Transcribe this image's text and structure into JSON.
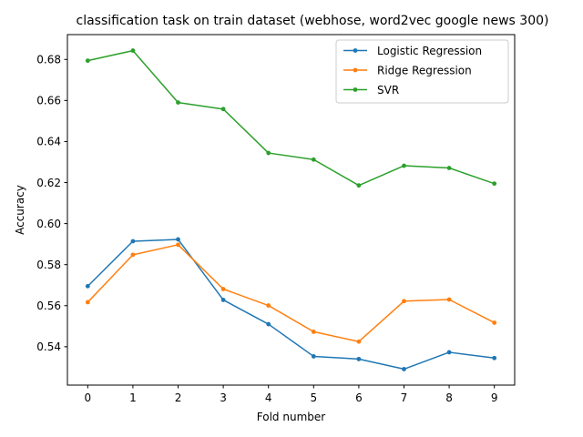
{
  "chart_data": {
    "type": "line",
    "title": "classification task on train dataset (webhose, word2vec google news 300)",
    "xlabel": "Fold number",
    "ylabel": "Accuracy",
    "x": [
      0,
      1,
      2,
      3,
      4,
      5,
      6,
      7,
      8,
      9
    ],
    "xticks": [
      "0",
      "1",
      "2",
      "3",
      "4",
      "5",
      "6",
      "7",
      "8",
      "9"
    ],
    "yticks": [
      "0.54",
      "0.56",
      "0.58",
      "0.60",
      "0.62",
      "0.64",
      "0.66",
      "0.68"
    ],
    "ytick_values": [
      0.54,
      0.56,
      0.58,
      0.6,
      0.62,
      0.64,
      0.66,
      0.68
    ],
    "xlim": [
      -0.45,
      9.45
    ],
    "ylim": [
      0.5213,
      0.6921
    ],
    "grid": false,
    "legend_position": "top-right",
    "series": [
      {
        "name": "Logistic Regression",
        "color": "#1f77b4",
        "values": [
          0.5695,
          0.5914,
          0.5923,
          0.5628,
          0.551,
          0.5353,
          0.534,
          0.5291,
          0.5373,
          0.5345
        ]
      },
      {
        "name": "Ridge Regression",
        "color": "#ff7f0e",
        "values": [
          0.5617,
          0.5848,
          0.5897,
          0.5681,
          0.5601,
          0.5473,
          0.5425,
          0.5622,
          0.563,
          0.5517
        ]
      },
      {
        "name": "SVR",
        "color": "#2ca02c",
        "values": [
          0.6794,
          0.6843,
          0.659,
          0.6558,
          0.6344,
          0.6312,
          0.6186,
          0.6282,
          0.6271,
          0.6195
        ]
      }
    ]
  }
}
